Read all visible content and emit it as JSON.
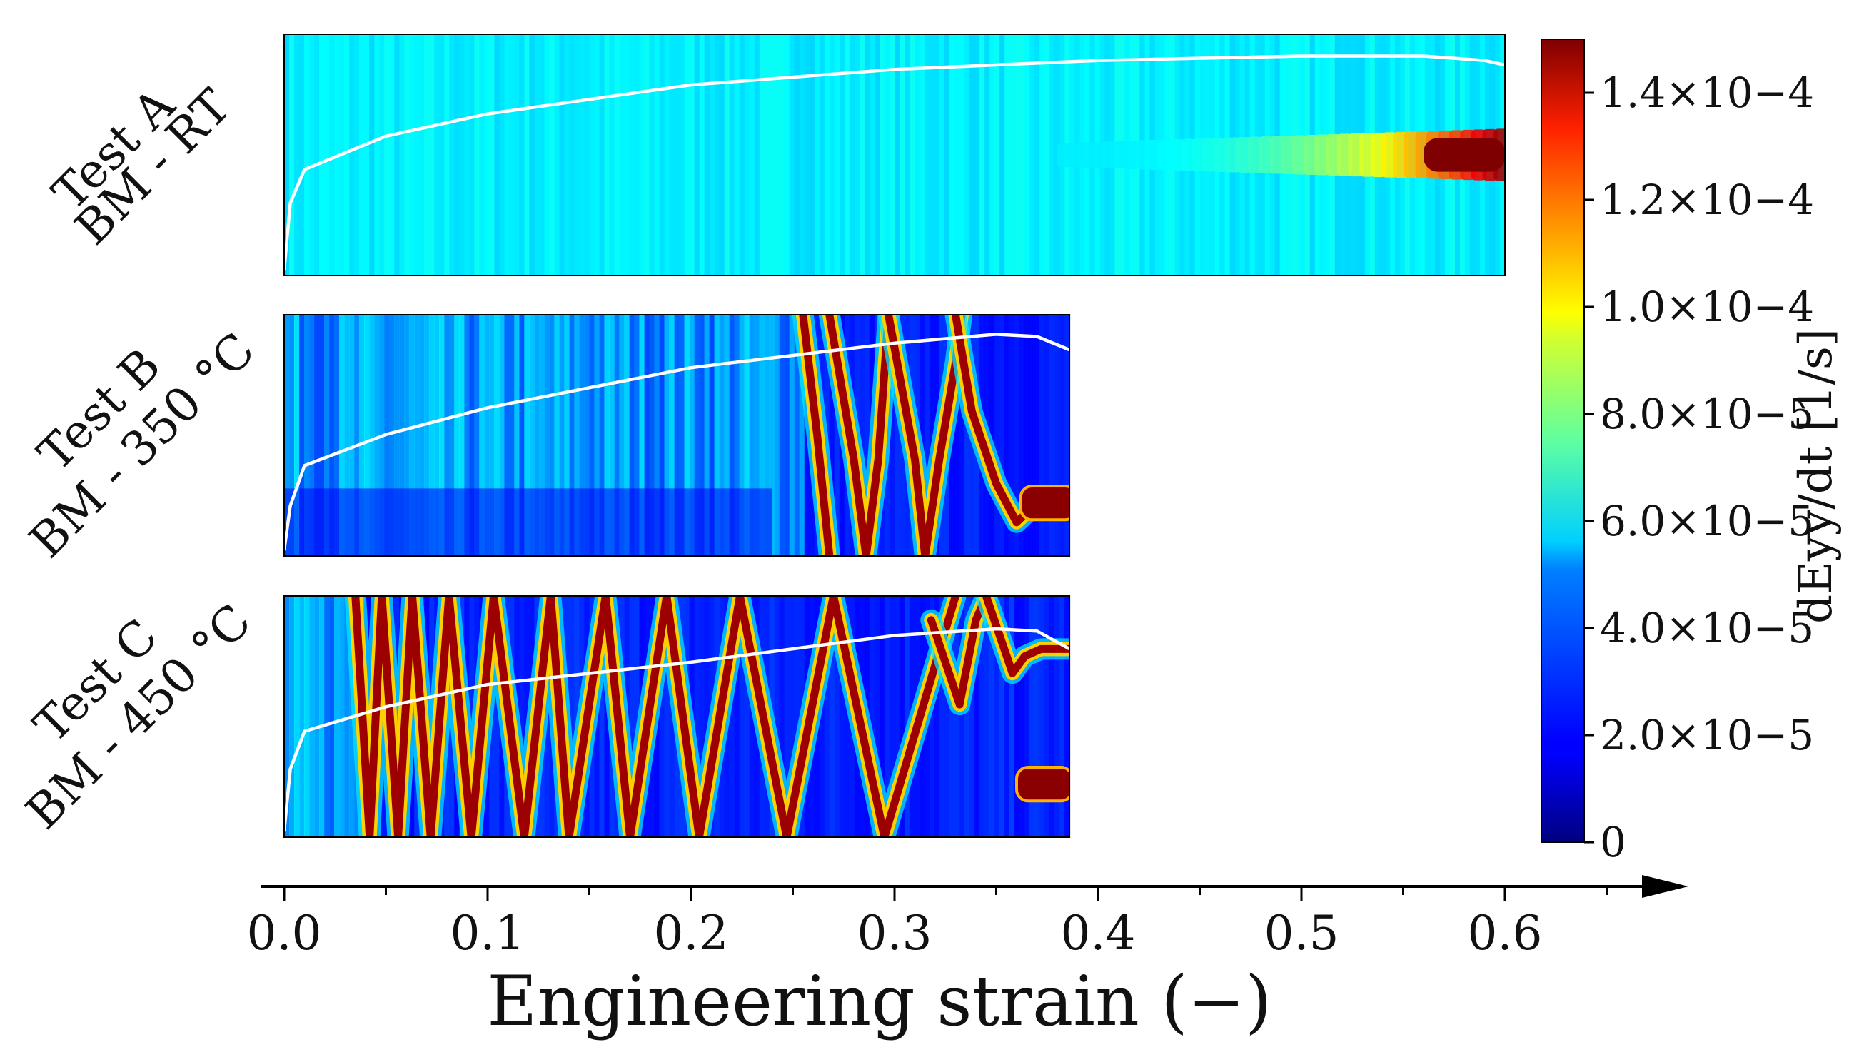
{
  "chart_data": {
    "type": "heatmap",
    "title": "",
    "xlabel": "Engineering strain (−)",
    "xlim": [
      0.0,
      0.6
    ],
    "x_ticks": [
      "0.0",
      "0.1",
      "0.2",
      "0.3",
      "0.4",
      "0.5",
      "0.6"
    ],
    "x_tick_values": [
      0.0,
      0.1,
      0.2,
      0.3,
      0.4,
      0.5,
      0.6
    ],
    "colorbar": {
      "label": "dEyy/dt [1/s]",
      "colormap": "jet",
      "range": [
        0,
        0.00015
      ],
      "ticks": [
        {
          "value": 0,
          "label": "0"
        },
        {
          "value": 2e-05,
          "label": "2.0×10−5"
        },
        {
          "value": 4e-05,
          "label": "4.0×10−5"
        },
        {
          "value": 6e-05,
          "label": "6.0×10−5"
        },
        {
          "value": 8e-05,
          "label": "8.0×10−5"
        },
        {
          "value": 0.0001,
          "label": "1.0×10−4"
        },
        {
          "value": 0.00012,
          "label": "1.2×10−4"
        },
        {
          "value": 0.00014,
          "label": "1.4×10−4"
        }
      ]
    },
    "panels": [
      {
        "line1": "Test A",
        "line2": "BM - RT",
        "strain_max": 0.6,
        "band_type": "necking",
        "neck_position": 0.5
      },
      {
        "line1": "Test B",
        "line2": "BM - 350 °C",
        "strain_max": 0.386,
        "band_type": "serrated",
        "band_onset": 0.255,
        "neck_position": 0.78
      },
      {
        "line1": "Test C",
        "line2": "BM - 450 °C",
        "strain_max": 0.386,
        "band_type": "propagating",
        "band_onset": 0.035,
        "neck_position": 0.78
      }
    ],
    "band_traces": {
      "Test B": [
        [
          [
            0.255,
            0.0
          ],
          [
            0.262,
            0.5
          ],
          [
            0.268,
            1.0
          ]
        ],
        [
          [
            0.268,
            0.0
          ],
          [
            0.28,
            0.6
          ],
          [
            0.286,
            1.0
          ],
          [
            0.292,
            0.6
          ],
          [
            0.297,
            0.0
          ]
        ],
        [
          [
            0.297,
            0.0
          ],
          [
            0.31,
            0.6
          ],
          [
            0.315,
            1.0
          ],
          [
            0.322,
            0.6
          ],
          [
            0.33,
            0.2
          ],
          [
            0.333,
            0.0
          ]
        ],
        [
          [
            0.33,
            0.0
          ],
          [
            0.338,
            0.4
          ],
          [
            0.35,
            0.7
          ],
          [
            0.36,
            0.86
          ],
          [
            0.37,
            0.78
          ],
          [
            0.386,
            0.78
          ]
        ]
      ],
      "Test C": [
        [
          [
            0.035,
            0.0
          ],
          [
            0.042,
            1.0
          ],
          [
            0.048,
            0.0
          ],
          [
            0.056,
            1.0
          ],
          [
            0.063,
            0.0
          ],
          [
            0.072,
            1.0
          ],
          [
            0.081,
            0.0
          ],
          [
            0.092,
            1.0
          ],
          [
            0.103,
            0.0
          ],
          [
            0.118,
            1.0
          ],
          [
            0.131,
            0.0
          ],
          [
            0.14,
            1.0
          ],
          [
            0.158,
            0.0
          ],
          [
            0.17,
            1.0
          ],
          [
            0.188,
            0.0
          ],
          [
            0.204,
            1.0
          ],
          [
            0.224,
            0.0
          ],
          [
            0.247,
            1.0
          ],
          [
            0.27,
            0.0
          ],
          [
            0.295,
            1.0
          ],
          [
            0.33,
            0.0
          ],
          [
            0.33,
            0.0
          ]
        ],
        [
          [
            0.318,
            0.1
          ],
          [
            0.332,
            0.45
          ],
          [
            0.34,
            0.1
          ],
          [
            0.345,
            0.0
          ]
        ],
        [
          [
            0.345,
            0.0
          ],
          [
            0.358,
            0.32
          ],
          [
            0.364,
            0.25
          ],
          [
            0.372,
            0.22
          ],
          [
            0.386,
            0.22
          ]
        ]
      ]
    },
    "stress_strain_curves": {
      "Test A": [
        [
          0.0,
          0.0
        ],
        [
          0.003,
          0.3
        ],
        [
          0.01,
          0.45
        ],
        [
          0.05,
          0.6
        ],
        [
          0.1,
          0.7
        ],
        [
          0.2,
          0.83
        ],
        [
          0.3,
          0.9
        ],
        [
          0.4,
          0.94
        ],
        [
          0.5,
          0.96
        ],
        [
          0.56,
          0.96
        ],
        [
          0.59,
          0.94
        ],
        [
          0.6,
          0.92
        ]
      ],
      "Test B": [
        [
          0.0,
          0.0
        ],
        [
          0.003,
          0.2
        ],
        [
          0.01,
          0.38
        ],
        [
          0.05,
          0.52
        ],
        [
          0.1,
          0.64
        ],
        [
          0.2,
          0.82
        ],
        [
          0.3,
          0.93
        ],
        [
          0.35,
          0.97
        ],
        [
          0.37,
          0.96
        ],
        [
          0.386,
          0.9
        ]
      ],
      "Test C": [
        [
          0.0,
          0.0
        ],
        [
          0.003,
          0.28
        ],
        [
          0.01,
          0.45
        ],
        [
          0.05,
          0.56
        ],
        [
          0.1,
          0.66
        ],
        [
          0.2,
          0.76
        ],
        [
          0.3,
          0.88
        ],
        [
          0.35,
          0.91
        ],
        [
          0.37,
          0.9
        ],
        [
          0.386,
          0.82
        ]
      ]
    }
  }
}
